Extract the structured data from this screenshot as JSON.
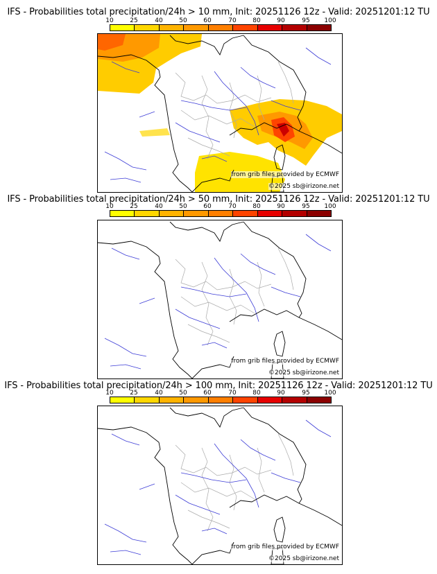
{
  "legend": {
    "ticks": [
      "10",
      "25",
      "40",
      "50",
      "60",
      "70",
      "80",
      "90",
      "95",
      "100"
    ],
    "colors": [
      "#ffff00",
      "#ffd700",
      "#ffb300",
      "#ff9900",
      "#ff7f00",
      "#ff4400",
      "#e60000",
      "#b30000",
      "#8b0000",
      "#5c0000"
    ]
  },
  "panels": [
    {
      "title": "IFS - Probabilities total precipitation/24h > 10 mm, Init: 20251126 12z - Valid: 20251201:12 TU",
      "source_credit": "from grib files provided by ECMWF",
      "copyright": "©2025 sb@irizone.net",
      "has_precip": true
    },
    {
      "title": "IFS - Probabilities total precipitation/24h > 50 mm, Init: 20251126 12z - Valid: 20251201:12 TU",
      "source_credit": "from grib files provided by ECMWF",
      "copyright": "©2025 sb@irizone.net",
      "has_precip": false
    },
    {
      "title": "IFS - Probabilities total precipitation/24h > 100 mm, Init: 20251126 12z - Valid: 20251201:12 TU",
      "source_credit": "from grib files provided by ECMWF",
      "copyright": "©2025 sb@irizone.net",
      "has_precip": false
    }
  ]
}
